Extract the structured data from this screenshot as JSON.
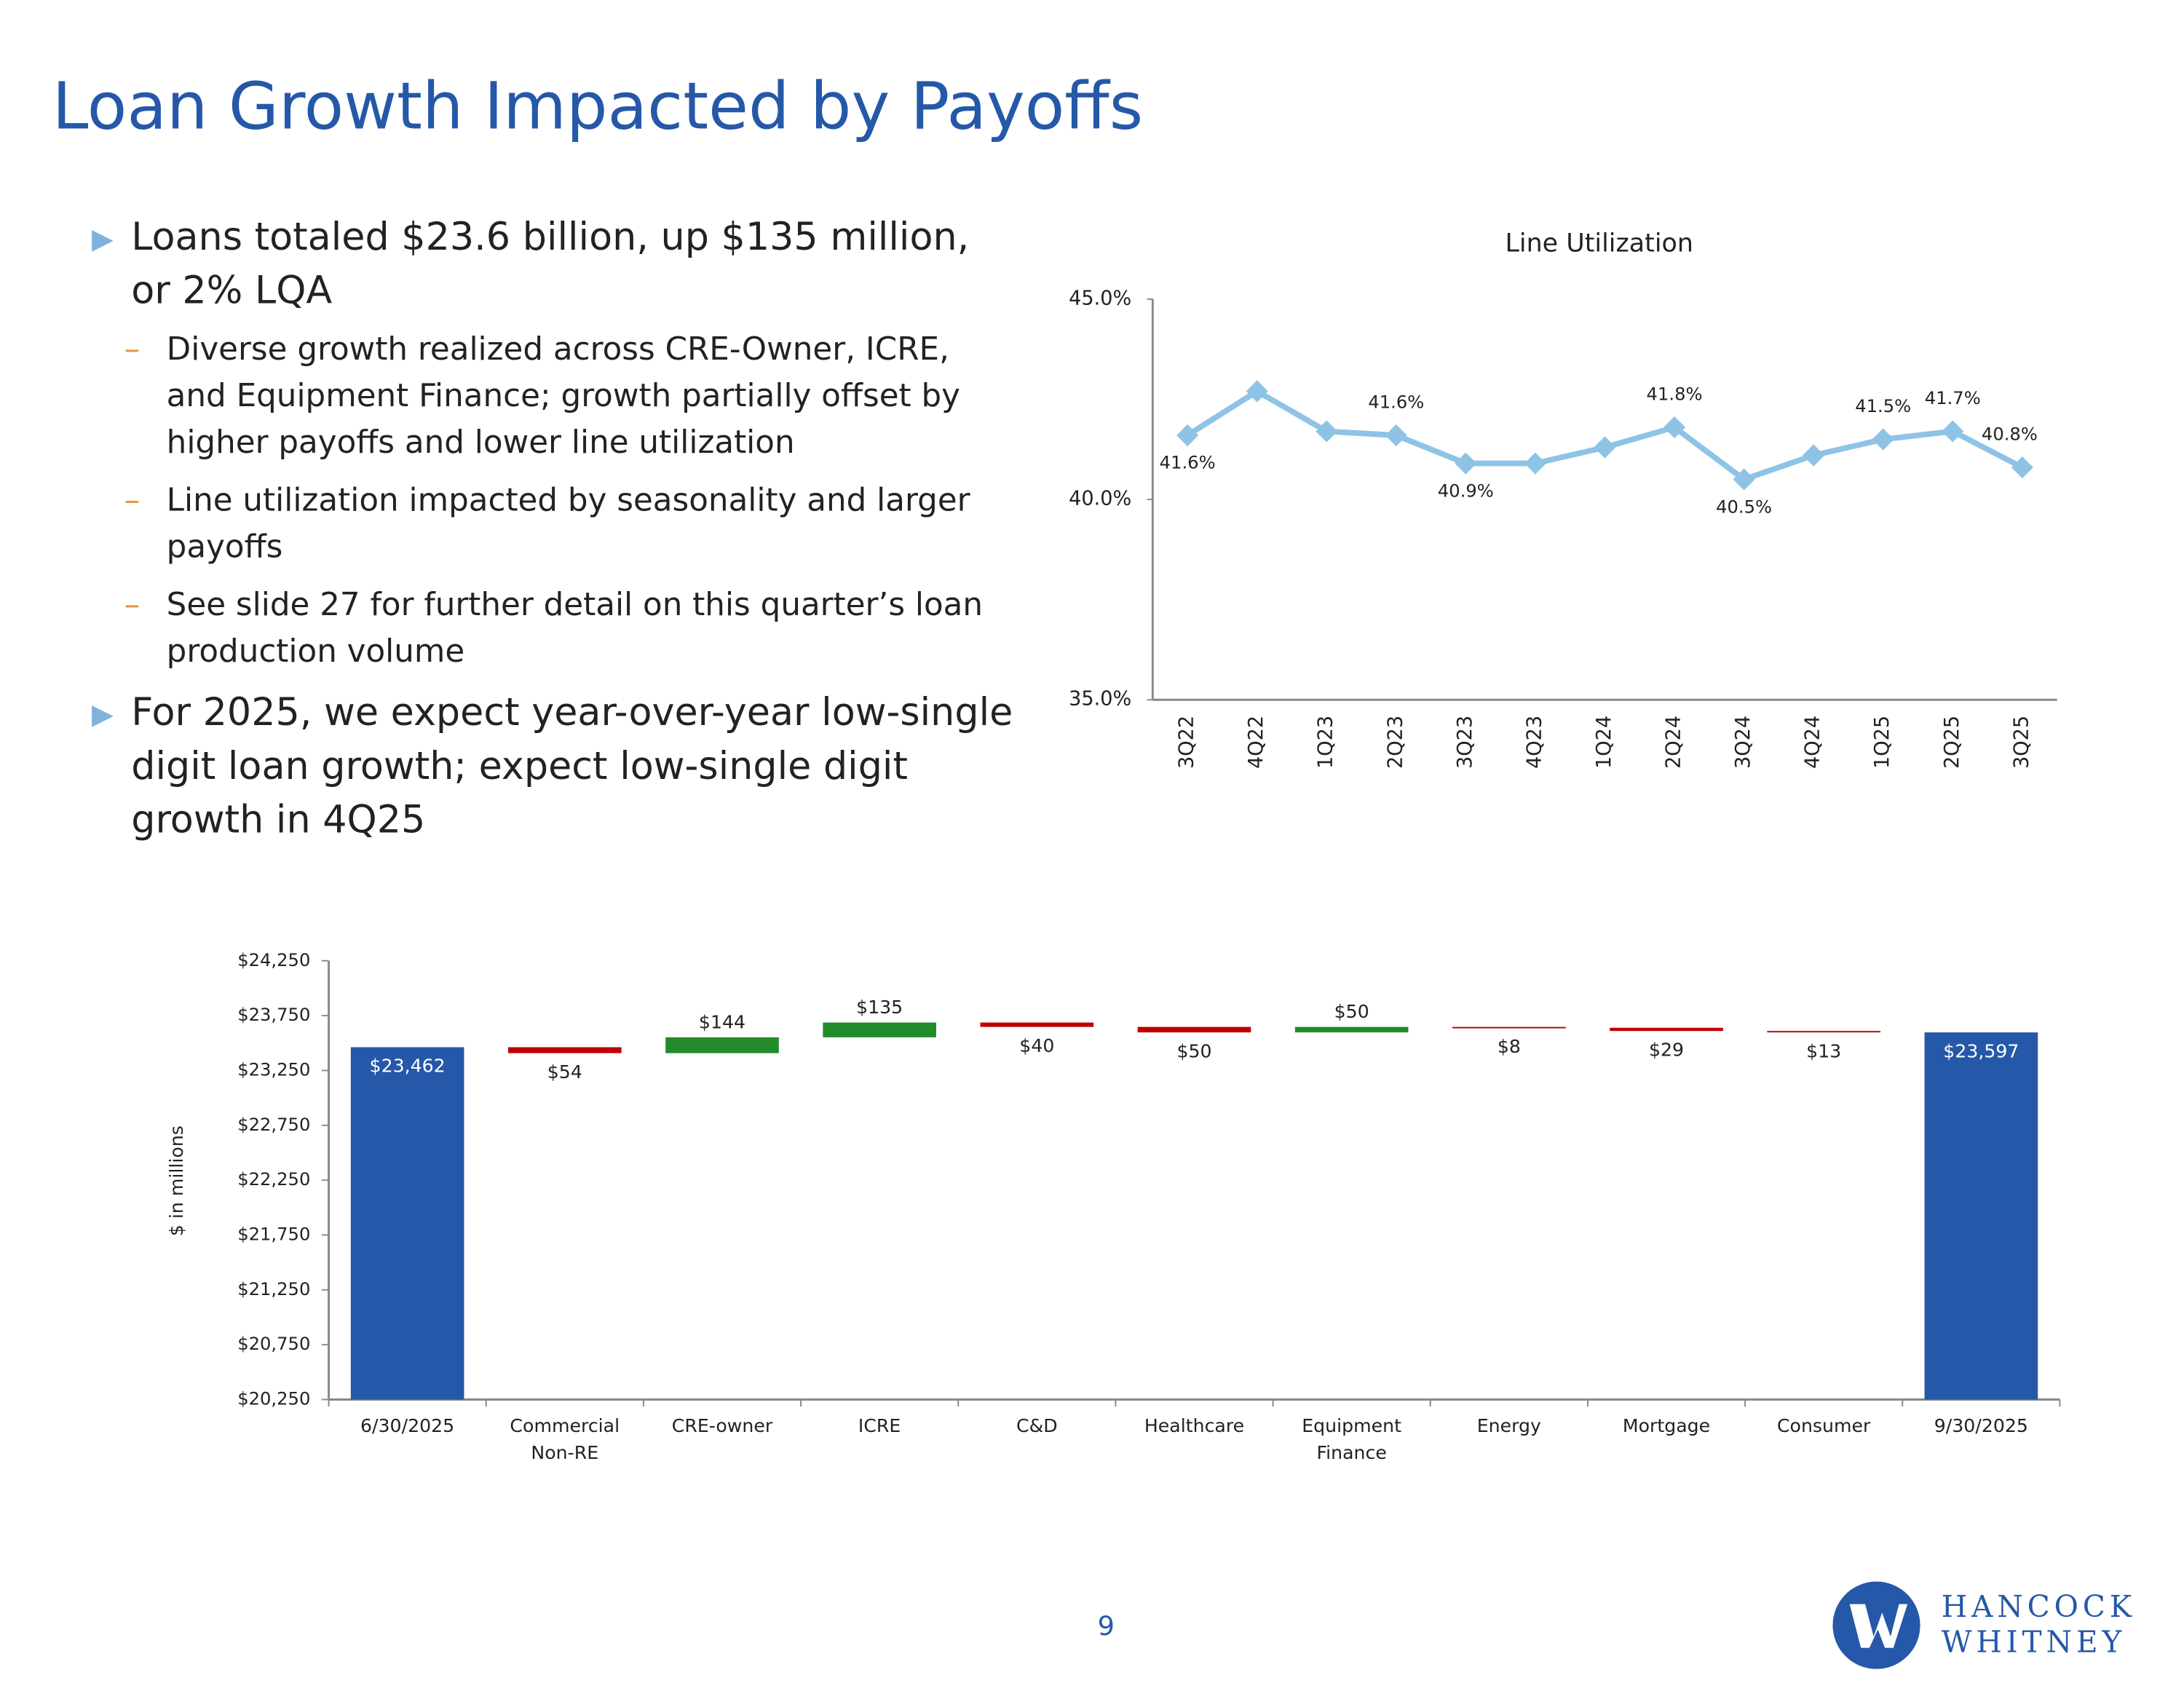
{
  "title": "Loan Growth Impacted by Payoffs",
  "bullets": [
    {
      "text": "Loans totaled $23.6 billion, up $135 million, or 2% LQA",
      "subs": [
        "Diverse growth realized across CRE-Owner, ICRE, and Equipment Finance; growth partially offset by higher payoffs and lower line utilization",
        "Line utilization impacted by seasonality and larger payoffs",
        "See slide 27 for further detail on this quarter’s loan production volume"
      ]
    },
    {
      "text": "For 2025, we expect year-over-year low-single digit loan growth; expect low-single digit growth in 4Q25",
      "subs": []
    }
  ],
  "chart_data": [
    {
      "type": "line",
      "title": "Line Utilization",
      "categories": [
        "3Q22",
        "4Q22",
        "1Q23",
        "2Q23",
        "3Q23",
        "4Q23",
        "1Q24",
        "2Q24",
        "3Q24",
        "4Q24",
        "1Q25",
        "2Q25",
        "3Q25"
      ],
      "values": [
        41.6,
        42.7,
        41.7,
        41.6,
        40.9,
        40.9,
        41.3,
        41.8,
        40.5,
        41.1,
        41.5,
        41.7,
        40.8
      ],
      "value_labels": [
        "41.6%",
        null,
        null,
        "41.6%",
        "40.9%",
        null,
        null,
        "41.8%",
        "40.5%",
        null,
        "41.5%",
        "41.7%",
        "40.8%"
      ],
      "color": "#8ec3e6",
      "ylim": [
        35,
        45
      ],
      "yticks": [
        {
          "value": 35,
          "label": "35.0%"
        },
        {
          "value": 40,
          "label": "40.0%"
        },
        {
          "value": 45,
          "label": "45.0%"
        }
      ],
      "grid": false
    },
    {
      "type": "waterfall",
      "ylabel": "$ in millions",
      "categories": [
        "6/30/2025",
        "Commercial Non-RE",
        "CRE-owner",
        "ICRE",
        "C&D",
        "Healthcare",
        "Equipment Finance",
        "Energy",
        "Mortgage",
        "Consumer",
        "9/30/2025"
      ],
      "measure": [
        "total",
        "relative",
        "relative",
        "relative",
        "relative",
        "relative",
        "relative",
        "relative",
        "relative",
        "relative",
        "total"
      ],
      "values": [
        23462,
        -54,
        144,
        135,
        -40,
        -50,
        50,
        -8,
        -29,
        -13,
        23597
      ],
      "value_labels": [
        "$23,462",
        "$54",
        "$144",
        "$135",
        "$40",
        "$50",
        "$50",
        "$8",
        "$29",
        "$13",
        "$23,597"
      ],
      "colors": {
        "total": "#2558a8",
        "increase": "#228b2b",
        "decrease": "#c00000"
      },
      "ylim": [
        20250,
        24250
      ],
      "yticks": [
        {
          "value": 20250,
          "label": "$20,250"
        },
        {
          "value": 20750,
          "label": "$20,750"
        },
        {
          "value": 21250,
          "label": "$21,250"
        },
        {
          "value": 21750,
          "label": "$21,750"
        },
        {
          "value": 22250,
          "label": "$22,250"
        },
        {
          "value": 22750,
          "label": "$22,750"
        },
        {
          "value": 23250,
          "label": "$23,250"
        },
        {
          "value": 23750,
          "label": "$23,750"
        },
        {
          "value": 24250,
          "label": "$24,250"
        }
      ],
      "grid": false
    }
  ],
  "page_number": "9",
  "logo": [
    "HANCOCK",
    "WHITNEY"
  ]
}
